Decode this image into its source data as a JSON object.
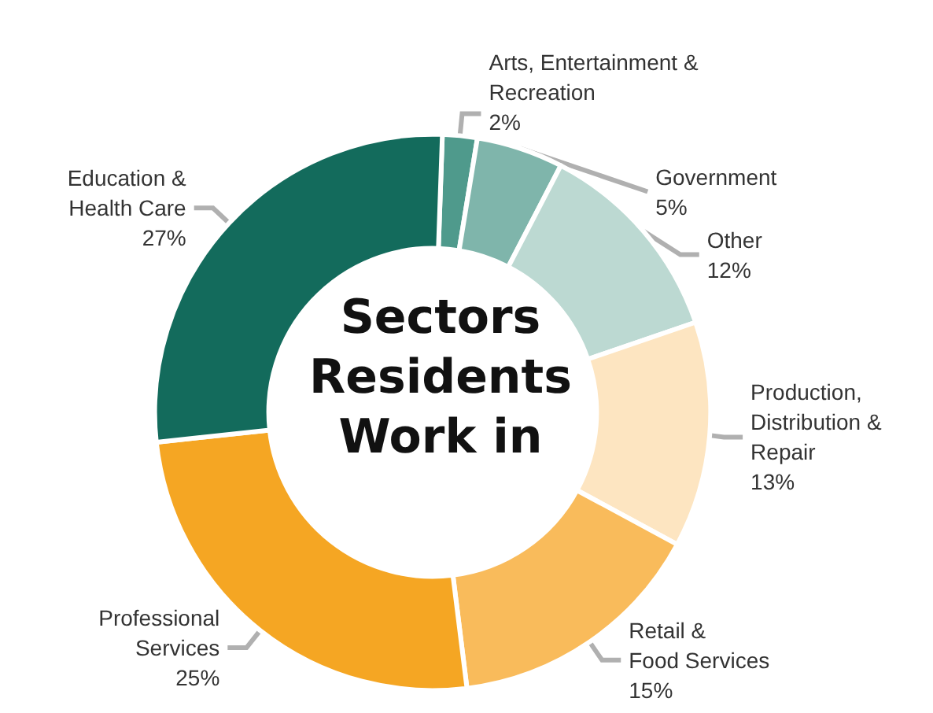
{
  "chart_data": {
    "type": "donut",
    "title": "Sectors\nResidents\nWork in",
    "categories": [
      "Arts, Entertainment &\nRecreation",
      "Government",
      "Other",
      "Production,\nDistribution &\nRepair",
      "Retail &\nFood Services",
      "Professional\nServices",
      "Education &\nHealth Care"
    ],
    "values": [
      2,
      5,
      12,
      13,
      15,
      25,
      27
    ],
    "value_labels": [
      "2%",
      "5%",
      "12%",
      "13%",
      "15%",
      "25%",
      "27%"
    ],
    "colors": [
      "#4f9a8c",
      "#7fb5ab",
      "#bcd9d2",
      "#fde5c1",
      "#f9bb5b",
      "#f5a623",
      "#136b5c"
    ],
    "legend": false
  }
}
